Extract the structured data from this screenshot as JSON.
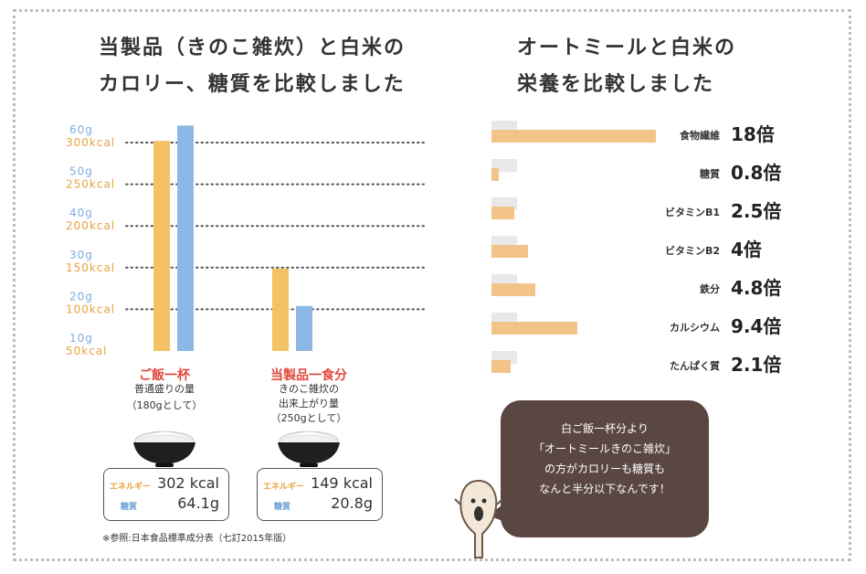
{
  "left": {
    "title_line1": "当製品（きのこ雑炊）と白米の",
    "title_line2": "カロリー、糖質を比較しました",
    "reference": "※参照:日本食品標準成分表（七訂2015年版）",
    "groups": [
      {
        "title": "ご飯一杯",
        "sub1": "普通盛りの量",
        "sub2": "（180gとして）",
        "sub3": "",
        "energy_label": "エネルギー",
        "energy_value": "302 kcal",
        "carb_label": "糖質",
        "carb_value": "64.1g"
      },
      {
        "title": "当製品一食分",
        "sub1": "きのこ雑炊の",
        "sub2": "出来上がり量",
        "sub3": "（250gとして）",
        "energy_label": "エネルギー",
        "energy_value": "149 kcal",
        "carb_label": "糖質",
        "carb_value": "20.8g"
      }
    ]
  },
  "right": {
    "title_line1": "オートミールと白米の",
    "title_line2": "栄養を比較しました",
    "bubble_lines": [
      "白ご飯一杯分より",
      "「オートミールきのこ雑炊」",
      "の方がカロリーも糖質も",
      "なんと半分以下なんです！"
    ]
  },
  "chart_data": [
    {
      "type": "bar",
      "title": "当製品（きのこ雑炊）と白米のカロリー、糖質を比較しました",
      "categories": [
        "ご飯一杯",
        "当製品一食分"
      ],
      "series": [
        {
          "values": [
            302,
            149
          ],
          "color": "#f3c363"
        },
        {
          "values": [
            64.1,
            20.8
          ],
          "color": "#8db8e6"
        }
      ],
      "y_kcal_ticks": [
        "300kcal",
        "250kcal",
        "200kcal",
        "150kcal",
        "100kcal",
        "50kcal"
      ],
      "y_kcal_values": [
        300,
        250,
        200,
        150,
        100,
        50
      ],
      "y_g_ticks": [
        "60g",
        "50g",
        "40g",
        "30g",
        "20g",
        "10g"
      ],
      "y_g_values": [
        60,
        50,
        40,
        30,
        20,
        10
      ],
      "ylim_kcal": [
        50,
        300
      ],
      "ylim_g": [
        10,
        60
      ],
      "grid": true
    },
    {
      "type": "bar",
      "orientation": "horizontal",
      "title": "オートミールと白米の栄養を比較しました",
      "categories": [
        "食物繊維",
        "糖質",
        "ビタミンB1",
        "ビタミンB2",
        "鉄分",
        "カルシウム",
        "たんぱく質"
      ],
      "ratio_labels": [
        "18倍",
        "0.8倍",
        "2.5倍",
        "4倍",
        "4.8倍",
        "9.4倍",
        "2.1倍"
      ],
      "series": [
        {
          "values": [
            1,
            1,
            1,
            1,
            1,
            1,
            1
          ],
          "color": "#e8e8e8"
        },
        {
          "values": [
            18,
            0.8,
            2.5,
            4,
            4.8,
            9.4,
            2.1
          ],
          "color": "#f3c48a"
        }
      ]
    }
  ]
}
